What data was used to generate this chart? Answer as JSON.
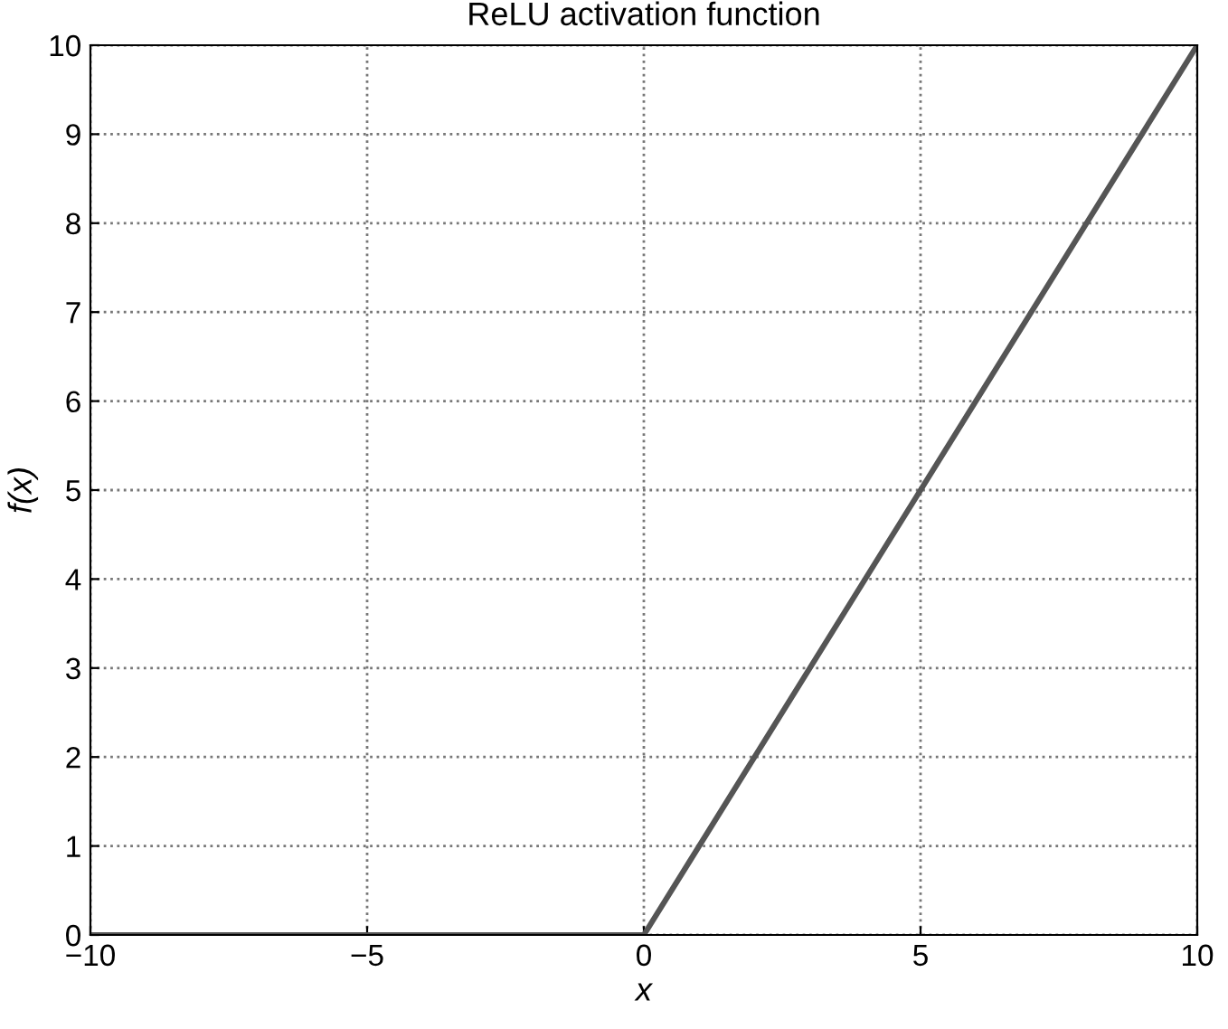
{
  "chart_data": {
    "type": "line",
    "title": "ReLU activation function",
    "xlabel": "x",
    "ylabel": "f(x)",
    "x": [
      -10,
      0,
      10
    ],
    "series": [
      {
        "color": "#555555",
        "values": [
          0,
          0,
          10
        ]
      }
    ],
    "xlim": [
      -10,
      10
    ],
    "ylim": [
      0,
      10
    ],
    "xticks": [
      {
        "value": -10,
        "label": "−10"
      },
      {
        "value": -5,
        "label": "−5"
      },
      0,
      5,
      10
    ],
    "yticks": [
      0,
      1,
      2,
      3,
      4,
      5,
      6,
      7,
      8,
      9,
      10
    ],
    "grid": true,
    "line_style": "solid"
  }
}
